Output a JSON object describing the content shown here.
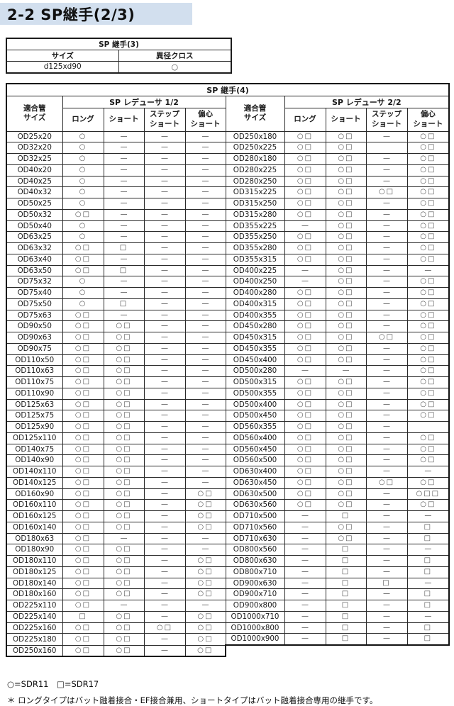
{
  "page": {
    "title": "2-2 SP継手(2/3)"
  },
  "legend_colors": {
    "banner_bg": "#d2dfee",
    "border": "#111111",
    "symbol": "#4e4e4e"
  },
  "symbols": {
    "circle": "○",
    "square": "□",
    "dash": "—"
  },
  "table_sp3": {
    "title": "SP 継手(3)",
    "columns": [
      "サイズ",
      "異径クロス"
    ],
    "rows": [
      [
        "d125xd90",
        "○"
      ]
    ]
  },
  "table_sp4": {
    "title": "SP 継手(4)",
    "size_header": "適合管\nサイズ",
    "left_group": "SP レデューサ 1/2",
    "right_group": "SP レデューサ 2/2",
    "columns": [
      "ロング",
      "ショート",
      "ステップ\nショート",
      "偏心\nショート"
    ],
    "left_rows": [
      [
        "OD25x20",
        "○",
        "—",
        "—",
        "—"
      ],
      [
        "OD32x20",
        "○",
        "—",
        "—",
        "—"
      ],
      [
        "OD32x25",
        "○",
        "—",
        "—",
        "—"
      ],
      [
        "OD40x20",
        "○",
        "—",
        "—",
        "—"
      ],
      [
        "OD40x25",
        "○",
        "—",
        "—",
        "—"
      ],
      [
        "OD40x32",
        "○",
        "—",
        "—",
        "—"
      ],
      [
        "OD50x25",
        "○",
        "—",
        "—",
        "—"
      ],
      [
        "OD50x32",
        "○□",
        "—",
        "—",
        "—"
      ],
      [
        "OD50x40",
        "○",
        "—",
        "—",
        "—"
      ],
      [
        "OD63x25",
        "○",
        "—",
        "—",
        "—"
      ],
      [
        "OD63x32",
        "○□",
        "□",
        "—",
        "—"
      ],
      [
        "OD63x40",
        "○□",
        "—",
        "—",
        "—"
      ],
      [
        "OD63x50",
        "○□",
        "□",
        "—",
        "—"
      ],
      [
        "OD75x32",
        "○",
        "—",
        "—",
        "—"
      ],
      [
        "OD75x40",
        "○",
        "—",
        "—",
        "—"
      ],
      [
        "OD75x50",
        "○",
        "□",
        "—",
        "—"
      ],
      [
        "OD75x63",
        "○□",
        "—",
        "—",
        "—"
      ],
      [
        "OD90x50",
        "○□",
        "○□",
        "—",
        "—"
      ],
      [
        "OD90x63",
        "○□",
        "○□",
        "—",
        "—"
      ],
      [
        "OD90x75",
        "○□",
        "○□",
        "—",
        "—"
      ],
      [
        "OD110x50",
        "○□",
        "○□",
        "—",
        "—"
      ],
      [
        "OD110x63",
        "○□",
        "○□",
        "—",
        "—"
      ],
      [
        "OD110x75",
        "○□",
        "○□",
        "—",
        "—"
      ],
      [
        "OD110x90",
        "○□",
        "○□",
        "—",
        "—"
      ],
      [
        "OD125x63",
        "○□",
        "○□",
        "—",
        "—"
      ],
      [
        "OD125x75",
        "○□",
        "○□",
        "—",
        "—"
      ],
      [
        "OD125x90",
        "○□",
        "○□",
        "—",
        "—"
      ],
      [
        "OD125x110",
        "○□",
        "○□",
        "—",
        "—"
      ],
      [
        "OD140x75",
        "○□",
        "○□",
        "—",
        "—"
      ],
      [
        "OD140x90",
        "○□",
        "○□",
        "—",
        "—"
      ],
      [
        "OD140x110",
        "○□",
        "○□",
        "—",
        "—"
      ],
      [
        "OD140x125",
        "○□",
        "○□",
        "—",
        "—"
      ],
      [
        "OD160x90",
        "○□",
        "○□",
        "—",
        "○□"
      ],
      [
        "OD160x110",
        "○□",
        "○□",
        "—",
        "○□"
      ],
      [
        "OD160x125",
        "○□",
        "○□",
        "—",
        "○□"
      ],
      [
        "OD160x140",
        "○□",
        "○□",
        "—",
        "○□"
      ],
      [
        "OD180x63",
        "○□",
        "—",
        "—",
        "—"
      ],
      [
        "OD180x90",
        "○□",
        "○□",
        "—",
        "—"
      ],
      [
        "OD180x110",
        "○□",
        "○□",
        "—",
        "○□"
      ],
      [
        "OD180x125",
        "○□",
        "○□",
        "—",
        "○□"
      ],
      [
        "OD180x140",
        "○□",
        "○□",
        "—",
        "○□"
      ],
      [
        "OD180x160",
        "○□",
        "○□",
        "—",
        "○□"
      ],
      [
        "OD225x110",
        "○□",
        "—",
        "—",
        "—"
      ],
      [
        "OD225x140",
        "□",
        "○□",
        "—",
        "○□"
      ],
      [
        "OD225x160",
        "○□",
        "○□",
        "○□",
        "○□"
      ],
      [
        "OD225x180",
        "○□",
        "○□",
        "—",
        "○□"
      ],
      [
        "OD250x160",
        "○□",
        "○□",
        "—",
        "○□"
      ]
    ],
    "right_rows": [
      [
        "OD250x180",
        "○□",
        "○□",
        "—",
        "○□"
      ],
      [
        "OD250x225",
        "○□",
        "○□",
        "",
        "○□"
      ],
      [
        "OD280x180",
        "○□",
        "○□",
        "—",
        "○□"
      ],
      [
        "OD280x225",
        "○□",
        "○□",
        "—",
        "○□"
      ],
      [
        "OD280x250",
        "○□",
        "○□",
        "—",
        "○□"
      ],
      [
        "OD315x225",
        "○□",
        "○□",
        "○□",
        "○□"
      ],
      [
        "OD315x250",
        "○□",
        "○□",
        "—",
        "○□"
      ],
      [
        "OD315x280",
        "○□",
        "○□",
        "—",
        "○□"
      ],
      [
        "OD355x225",
        "—",
        "○□",
        "—",
        "○□"
      ],
      [
        "OD355x250",
        "○□",
        "○□",
        "—",
        "○□"
      ],
      [
        "OD355x280",
        "○□",
        "○□",
        "—",
        "○□"
      ],
      [
        "OD355x315",
        "○□",
        "○□",
        "—",
        "○□"
      ],
      [
        "OD400x225",
        "—",
        "○□",
        "—",
        "—"
      ],
      [
        "OD400x250",
        "—",
        "○□",
        "—",
        "○□"
      ],
      [
        "OD400x280",
        "○□",
        "○□",
        "—",
        "○□"
      ],
      [
        "OD400x315",
        "○□",
        "○□",
        "—",
        "○□"
      ],
      [
        "OD400x355",
        "○□",
        "○□",
        "—",
        "○□"
      ],
      [
        "OD450x280",
        "○□",
        "○□",
        "—",
        "○□"
      ],
      [
        "OD450x315",
        "○□",
        "○□",
        "○□",
        "○□"
      ],
      [
        "OD450x355",
        "○□",
        "○□",
        "—",
        "○□"
      ],
      [
        "OD450x400",
        "○□",
        "○□",
        "—",
        "○□"
      ],
      [
        "OD500x280",
        "—",
        "—",
        "—",
        "○□"
      ],
      [
        "OD500x315",
        "○□",
        "○□",
        "—",
        "○□"
      ],
      [
        "OD500x355",
        "○□",
        "○□",
        "—",
        "○□"
      ],
      [
        "OD500x400",
        "○□",
        "○□",
        "—",
        "○□"
      ],
      [
        "OD500x450",
        "○□",
        "○□",
        "—",
        "○□"
      ],
      [
        "OD560x355",
        "○□",
        "○□",
        "—",
        ""
      ],
      [
        "OD560x400",
        "○□",
        "○□",
        "—",
        "○□"
      ],
      [
        "OD560x450",
        "○□",
        "○□",
        "—",
        "○□"
      ],
      [
        "OD560x500",
        "○□",
        "○□",
        "—",
        "○□"
      ],
      [
        "OD630x400",
        "○□",
        "○□",
        "—",
        "—"
      ],
      [
        "OD630x450",
        "○□",
        "○□",
        "○□",
        "○□"
      ],
      [
        "OD630x500",
        "○□",
        "○□",
        "—",
        "○□□"
      ],
      [
        "OD630x560",
        "○□",
        "○□",
        "—",
        "○□"
      ],
      [
        "OD710x500",
        "—",
        "□",
        "—",
        "—"
      ],
      [
        "OD710x560",
        "—",
        "○□",
        "—",
        "□"
      ],
      [
        "OD710x630",
        "—",
        "○□",
        "—",
        "□"
      ],
      [
        "OD800x560",
        "—",
        "□",
        "—",
        "—"
      ],
      [
        "OD800x630",
        "—",
        "□",
        "—",
        "□"
      ],
      [
        "OD800x710",
        "—",
        "□",
        "—",
        "□"
      ],
      [
        "OD900x630",
        "—",
        "□",
        "□",
        "—"
      ],
      [
        "OD900x710",
        "—",
        "□",
        "—",
        "□"
      ],
      [
        "OD900x800",
        "—",
        "□",
        "—",
        "□"
      ],
      [
        "OD1000x710",
        "—",
        "□",
        "—",
        "—"
      ],
      [
        "OD1000x800",
        "—",
        "□",
        "—",
        "□"
      ],
      [
        "OD1000x900",
        "—",
        "□",
        "—",
        "□"
      ]
    ]
  },
  "notes": {
    "legend": "○=SDR11　□=SDR17",
    "note": "＊ ロングタイプはバット融着接合・EF接合兼用、ショートタイプはバット融着接合専用の継手です。"
  }
}
